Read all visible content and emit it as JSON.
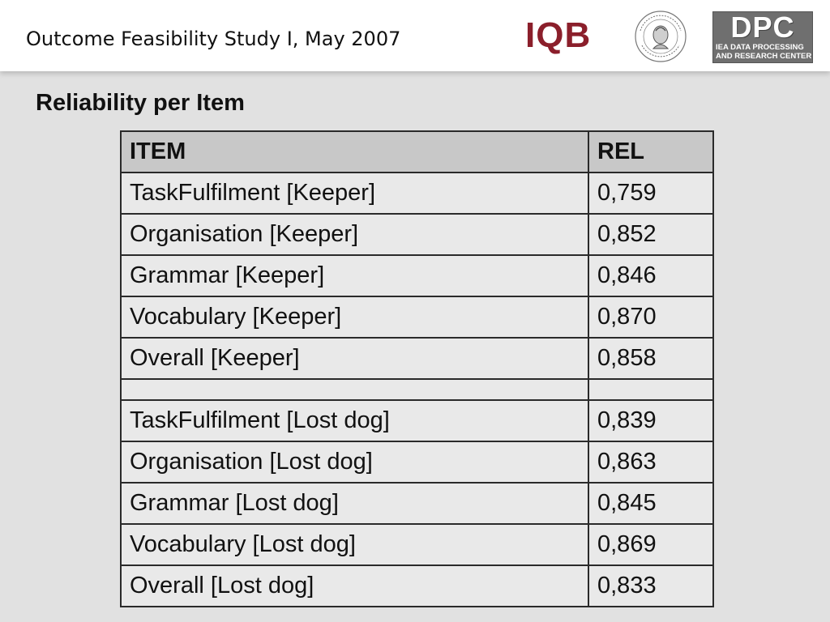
{
  "header": {
    "title": "Outcome Feasibility Study I, May 2007",
    "logos": {
      "iqb": "IQB",
      "seal_text": "HUMBOLDT-UNIVERSITÄT ZU BERLIN",
      "dpc_big": "DPC",
      "dpc_line1": "IEA DATA PROCESSING",
      "dpc_line2": "AND RESEARCH CENTER"
    }
  },
  "section_title": "Reliability per Item",
  "table": {
    "headers": [
      "ITEM",
      "REL"
    ],
    "rows": [
      [
        "TaskFulfilment [Keeper]",
        "0,759"
      ],
      [
        "Organisation [Keeper]",
        "0,852"
      ],
      [
        "Grammar [Keeper]",
        "0,846"
      ],
      [
        "Vocabulary [Keeper]",
        "0,870"
      ],
      [
        "Overall [Keeper]",
        "0,858"
      ],
      [
        "",
        ""
      ],
      [
        "TaskFulfilment [Lost dog]",
        "0,839"
      ],
      [
        "Organisation [Lost dog]",
        "0,863"
      ],
      [
        "Grammar [Lost dog]",
        "0,845"
      ],
      [
        "Vocabulary [Lost dog]",
        "0,869"
      ],
      [
        "Overall [Lost dog]",
        "0,833"
      ]
    ]
  },
  "colors": {
    "background": "#e1e1e1",
    "header_bg": "#ffffff",
    "iqb_red": "#8b1f2b",
    "dpc_gray": "#6f6f6f",
    "table_header": "#c8c8c8",
    "table_cell": "#e9e9e9"
  }
}
